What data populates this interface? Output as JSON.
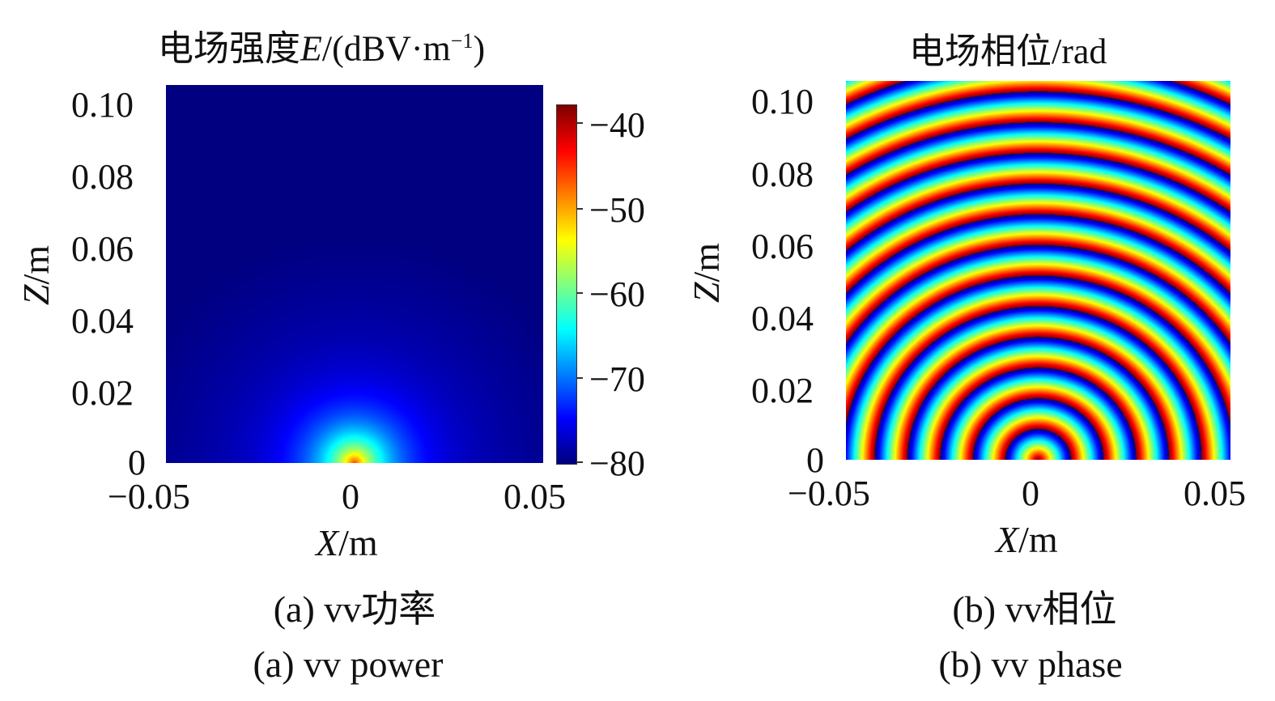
{
  "panels": [
    {
      "id": "a",
      "title_main": "电场强度",
      "title_var": "E",
      "title_unit_open": "/(dBV·m",
      "title_sup": "−1",
      "title_close": ")",
      "xlabel_var": "X",
      "xlabel_unit": "/m",
      "ylabel_var": "Z",
      "ylabel_unit": "/m",
      "xticks": [
        "−0.05",
        "0",
        "0.05"
      ],
      "yticks": [
        "0.10",
        "0.08",
        "0.06",
        "0.04",
        "0.02",
        "0"
      ],
      "colorbar_ticks": [
        "−40",
        "−50",
        "−60",
        "−70",
        "−80"
      ],
      "caption_cn": "(a) vv功率",
      "caption_en": "(a) vv power"
    },
    {
      "id": "b",
      "title": "电场相位/rad",
      "xlabel_var": "X",
      "xlabel_unit": "/m",
      "ylabel_var": "Z",
      "ylabel_unit": "/m",
      "xticks": [
        "−0.05",
        "0",
        "0.05"
      ],
      "yticks": [
        "0.10",
        "0.08",
        "0.06",
        "0.04",
        "0.02",
        "0"
      ],
      "caption_cn": "(b)  vv相位",
      "caption_en": "(b) vv phase"
    }
  ],
  "chart_data": [
    {
      "type": "heatmap",
      "title": "电场强度E/(dBV·m−1)",
      "xlabel": "X/m",
      "ylabel": "Z/m",
      "xlim": [
        -0.05,
        0.05
      ],
      "ylim": [
        0,
        0.105
      ],
      "source_x": 0,
      "source_z": 0,
      "colorbar_range": [
        -82,
        -38
      ],
      "peak_value": -46,
      "far_field_value": -80,
      "colormap": "jet"
    },
    {
      "type": "heatmap",
      "title": "电场相位/rad",
      "xlabel": "X/m",
      "ylabel": "Z/m",
      "xlim": [
        -0.05,
        0.05
      ],
      "ylim": [
        0,
        0.105
      ],
      "source_x": 0,
      "source_z": 0,
      "pattern": "concentric phase rings",
      "ring_spacing_m": 0.0085,
      "colormap": "jet"
    }
  ]
}
